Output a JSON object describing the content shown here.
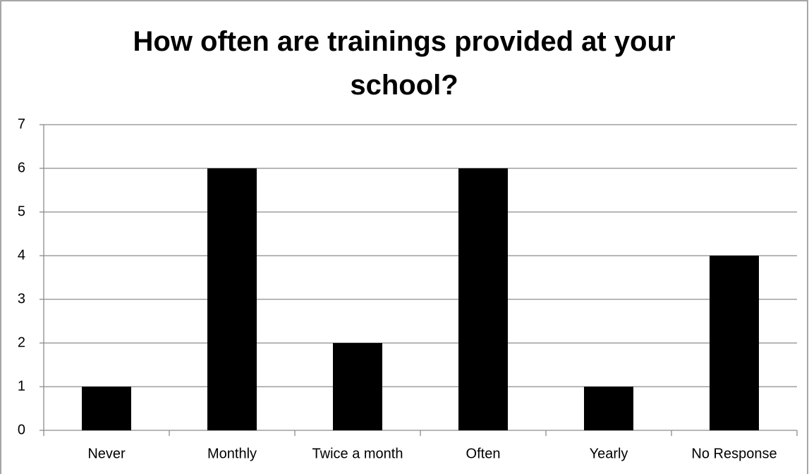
{
  "chart_data": {
    "type": "bar",
    "title": "How often are trainings provided at your school?",
    "categories": [
      "Never",
      "Monthly",
      "Twice a month",
      "Often",
      "Yearly",
      "No Response"
    ],
    "values": [
      1,
      6,
      2,
      6,
      1,
      4
    ],
    "color": "#000000",
    "ylim": [
      0,
      7
    ],
    "yticks": [
      0,
      1,
      2,
      3,
      4,
      5,
      6,
      7
    ],
    "grid": true
  }
}
